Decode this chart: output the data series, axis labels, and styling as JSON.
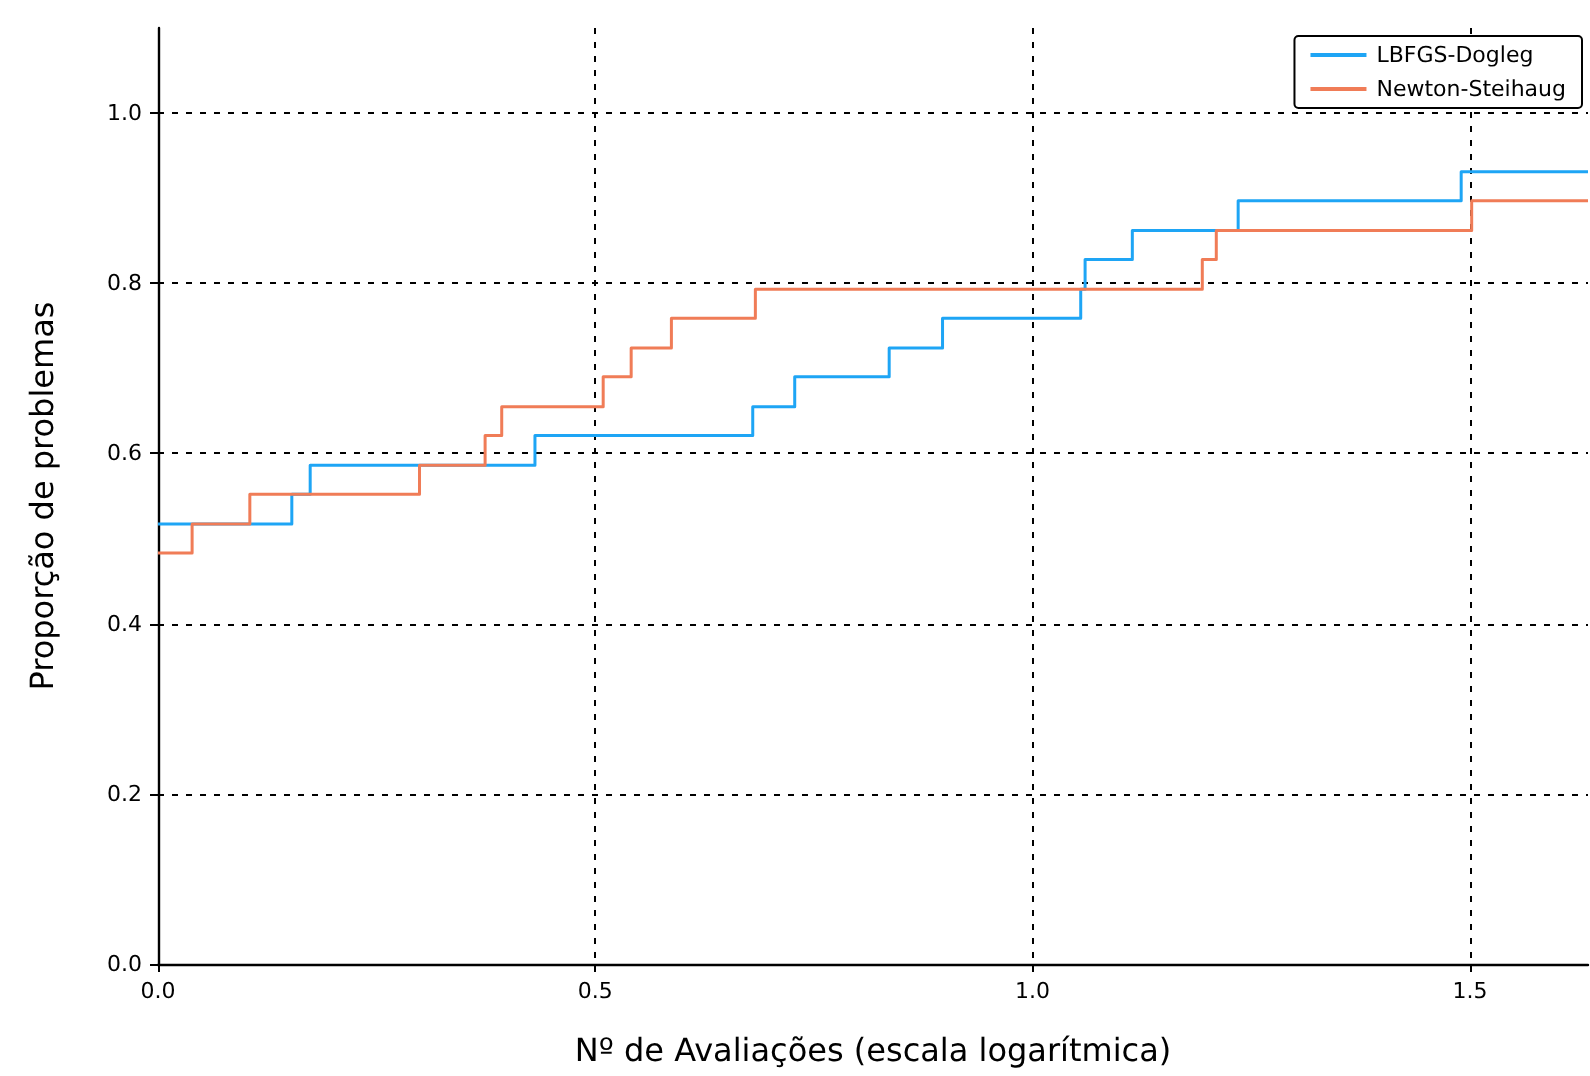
{
  "chart_data": {
    "type": "step",
    "xlabel": "Nº de Avaliações (escala logarítmica)",
    "ylabel": "Proporção de problemas",
    "series": [
      {
        "name": "LBFGS-Dogleg",
        "color": "#1ea5f5",
        "x": [
          0,
          0.153,
          0.174,
          0.431,
          0.68,
          0.728,
          0.836,
          0.897,
          1.055,
          1.06,
          1.114,
          1.235,
          1.49,
          1.635
        ],
        "values": [
          0.517,
          0.552,
          0.586,
          0.621,
          0.655,
          0.69,
          0.724,
          0.759,
          0.793,
          0.828,
          0.862,
          0.897,
          0.931,
          0.931
        ]
      },
      {
        "name": "Newton-Steihaug",
        "color": "#f07c57",
        "x": [
          0,
          0.039,
          0.105,
          0.299,
          0.374,
          0.393,
          0.509,
          0.541,
          0.587,
          0.683,
          1.194,
          1.21,
          1.502,
          1.635
        ],
        "values": [
          0.483,
          0.517,
          0.552,
          0.586,
          0.621,
          0.655,
          0.69,
          0.724,
          0.759,
          0.793,
          0.828,
          0.862,
          0.897,
          0.897
        ]
      }
    ],
    "xlim": [
      0,
      1.635
    ],
    "xticks": [
      {
        "value": 0,
        "label": "0.0"
      },
      {
        "value": 0.5,
        "label": "0.5"
      },
      {
        "value": 1,
        "label": "1.0"
      },
      {
        "value": 1.5,
        "label": "1.5"
      }
    ],
    "ylim": [
      0,
      1.1
    ],
    "yticks": [
      {
        "value": 0,
        "label": "0.0"
      },
      {
        "value": 0.2,
        "label": "0.2"
      },
      {
        "value": 0.4,
        "label": "0.4"
      },
      {
        "value": 0.6,
        "label": "0.6"
      },
      {
        "value": 0.8,
        "label": "0.8"
      },
      {
        "value": 1,
        "label": "1.0"
      }
    ],
    "grid": true,
    "legend": "top right",
    "marker": "none",
    "line_style": "solid"
  }
}
